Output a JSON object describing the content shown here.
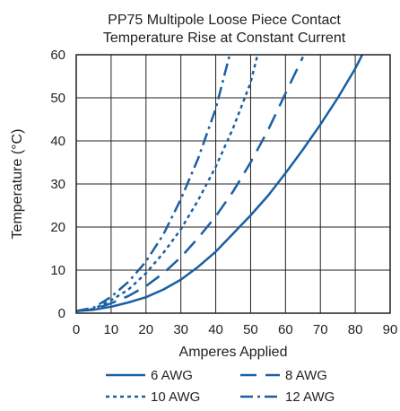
{
  "chart_data": {
    "type": "line",
    "title": "PP75 Multipole Loose Piece Contact",
    "subtitle": "Temperature Rise at Constant Current",
    "xlabel": "Amperes Applied",
    "ylabel": "Temperature (°C)",
    "xlim": [
      0,
      90
    ],
    "ylim": [
      0,
      60
    ],
    "xticks": [
      "0",
      "10",
      "20",
      "30",
      "40",
      "50",
      "60",
      "70",
      "80",
      "90"
    ],
    "yticks": [
      "0",
      "10",
      "20",
      "30",
      "40",
      "50",
      "60"
    ],
    "grid": true,
    "legend_position": "bottom",
    "line_color": "#1a5fa3",
    "series": [
      {
        "name": "6  AWG",
        "style": "solid",
        "x": [
          0,
          5,
          10,
          15,
          20,
          25,
          30,
          35,
          40,
          45,
          50,
          55,
          60,
          65,
          70,
          75,
          80,
          82
        ],
        "y": [
          0.5,
          0.8,
          1.5,
          2.5,
          3.7,
          5.5,
          7.8,
          10.8,
          14.3,
          18.5,
          22.7,
          27.3,
          32.5,
          38.0,
          43.8,
          50.0,
          56.8,
          60.0
        ]
      },
      {
        "name": "8 AWG",
        "style": "dash",
        "x": [
          0,
          5,
          10,
          15,
          20,
          25,
          30,
          35,
          40,
          45,
          50,
          55,
          60,
          65
        ],
        "y": [
          0.5,
          0.9,
          2.3,
          4.0,
          6.3,
          9.3,
          13.0,
          17.5,
          22.5,
          28.3,
          35.0,
          42.5,
          51.0,
          59.5
        ]
      },
      {
        "name": "10 AWG",
        "style": "dot",
        "x": [
          0,
          5,
          10,
          15,
          20,
          25,
          30,
          35,
          40,
          45,
          50,
          52
        ],
        "y": [
          0.5,
          1.0,
          3.0,
          5.5,
          9.3,
          14.0,
          19.5,
          26.3,
          34.0,
          43.0,
          53.5,
          60.0
        ]
      },
      {
        "name": "12 AWG",
        "style": "dashdot",
        "x": [
          0,
          5,
          10,
          15,
          20,
          25,
          30,
          35,
          40,
          44
        ],
        "y": [
          0.5,
          1.3,
          3.8,
          7.3,
          12.0,
          18.3,
          26.5,
          36.0,
          47.5,
          60.0
        ]
      }
    ]
  }
}
